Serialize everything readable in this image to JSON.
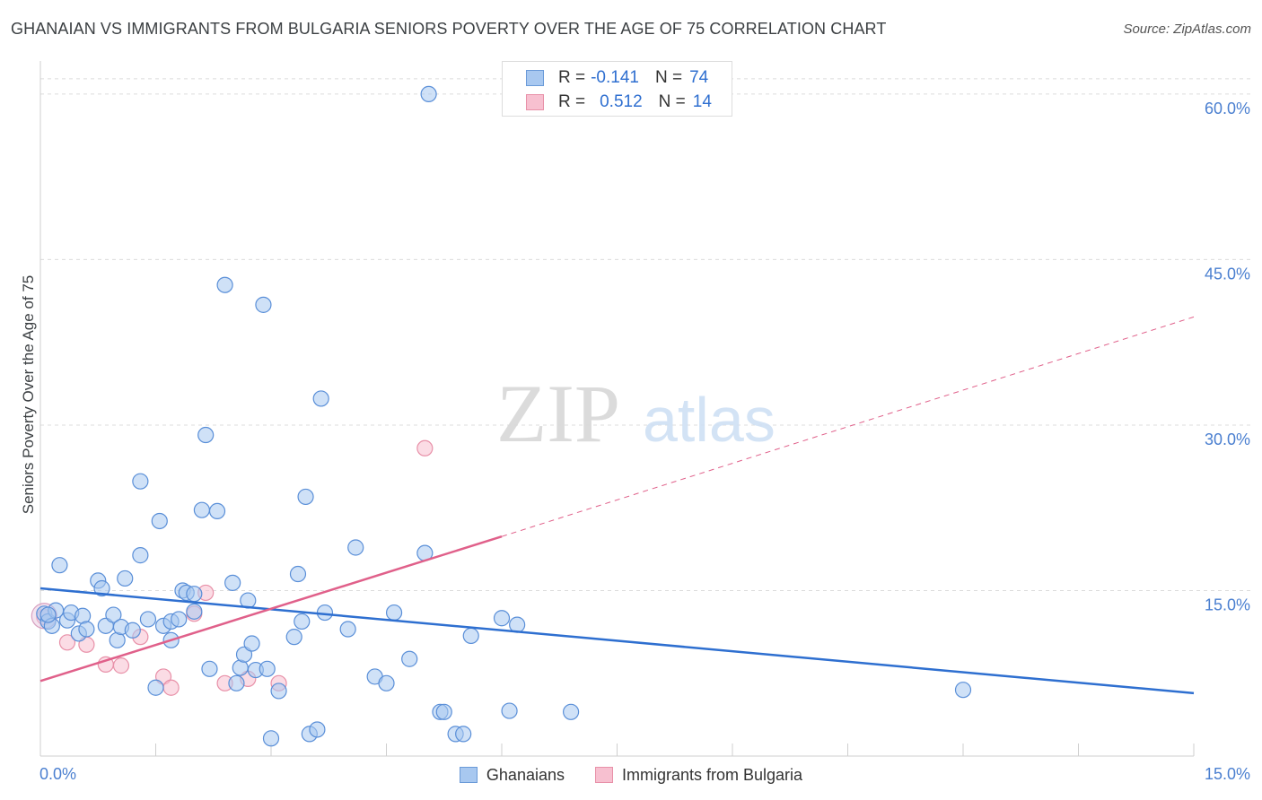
{
  "header": {
    "title": "GHANAIAN VS IMMIGRANTS FROM BULGARIA SENIORS POVERTY OVER THE AGE OF 75 CORRELATION CHART",
    "source": "Source: ZipAtlas.com"
  },
  "watermark": {
    "zip": "ZIP",
    "atlas": "atlas"
  },
  "legend": {
    "rows": [
      {
        "r_label": "R =",
        "r_value": "-0.141",
        "n_label": "N =",
        "n_value": "74",
        "color": "#a8c8f0",
        "border": "#6a9ad8"
      },
      {
        "r_label": "R =",
        "r_value": "0.512",
        "n_label": "N =",
        "n_value": "14",
        "color": "#f7c0d0",
        "border": "#e890a8"
      }
    ]
  },
  "chart_data": {
    "type": "scatter",
    "ylabel": "Seniors Poverty Over the Age of 75",
    "xlim": [
      0,
      15
    ],
    "ylim": [
      0,
      63
    ],
    "x_tick_labels": [
      "0.0%",
      "15.0%"
    ],
    "y_ticks": [
      15,
      30,
      45,
      60
    ],
    "y_tick_labels": [
      "15.0%",
      "30.0%",
      "45.0%",
      "60.0%"
    ],
    "grid": "horizontal-dashed",
    "legend_position": "top-center",
    "series": [
      {
        "name": "Ghanaians",
        "color": "#a8c8f0",
        "stroke": "#5a8fd8",
        "trend": {
          "x": [
            0,
            15
          ],
          "y": [
            15.2,
            5.7
          ],
          "color": "#2e6fd0"
        },
        "points": [
          [
            0.05,
            12.9
          ],
          [
            0.1,
            12.2
          ],
          [
            0.15,
            11.8
          ],
          [
            0.2,
            13.2
          ],
          [
            0.25,
            17.3
          ],
          [
            0.35,
            12.3
          ],
          [
            0.4,
            13.0
          ],
          [
            0.5,
            11.1
          ],
          [
            0.55,
            12.7
          ],
          [
            0.6,
            11.5
          ],
          [
            0.75,
            15.9
          ],
          [
            0.8,
            15.2
          ],
          [
            0.85,
            11.8
          ],
          [
            0.95,
            12.8
          ],
          [
            1.0,
            10.5
          ],
          [
            1.05,
            11.7
          ],
          [
            1.1,
            16.1
          ],
          [
            1.2,
            11.4
          ],
          [
            1.3,
            18.2
          ],
          [
            1.3,
            24.9
          ],
          [
            1.4,
            12.4
          ],
          [
            1.5,
            6.2
          ],
          [
            1.55,
            21.3
          ],
          [
            1.6,
            11.8
          ],
          [
            1.7,
            12.2
          ],
          [
            1.7,
            10.5
          ],
          [
            1.8,
            12.4
          ],
          [
            1.85,
            15.0
          ],
          [
            1.9,
            14.8
          ],
          [
            2.0,
            13.1
          ],
          [
            2.0,
            14.7
          ],
          [
            2.1,
            22.3
          ],
          [
            2.15,
            29.1
          ],
          [
            2.2,
            7.9
          ],
          [
            2.3,
            22.2
          ],
          [
            2.4,
            42.7
          ],
          [
            2.5,
            15.7
          ],
          [
            2.55,
            6.6
          ],
          [
            2.6,
            8.0
          ],
          [
            2.65,
            9.2
          ],
          [
            2.7,
            14.1
          ],
          [
            2.75,
            10.2
          ],
          [
            2.8,
            7.8
          ],
          [
            2.9,
            40.9
          ],
          [
            2.95,
            7.9
          ],
          [
            3.0,
            1.6
          ],
          [
            3.1,
            5.9
          ],
          [
            3.3,
            10.8
          ],
          [
            3.35,
            16.5
          ],
          [
            3.4,
            12.2
          ],
          [
            3.45,
            23.5
          ],
          [
            3.5,
            2.0
          ],
          [
            3.6,
            2.4
          ],
          [
            3.65,
            32.4
          ],
          [
            3.7,
            13.0
          ],
          [
            4.0,
            11.5
          ],
          [
            4.1,
            18.9
          ],
          [
            4.35,
            7.2
          ],
          [
            4.5,
            6.6
          ],
          [
            4.6,
            13.0
          ],
          [
            4.8,
            8.8
          ],
          [
            5.0,
            18.4
          ],
          [
            5.05,
            60.0
          ],
          [
            5.2,
            4.0
          ],
          [
            5.25,
            4.0
          ],
          [
            5.4,
            2.0
          ],
          [
            5.5,
            2.0
          ],
          [
            5.6,
            10.9
          ],
          [
            6.0,
            12.5
          ],
          [
            6.1,
            4.1
          ],
          [
            6.2,
            11.9
          ],
          [
            6.9,
            4.0
          ],
          [
            12.0,
            6.0
          ],
          [
            0.1,
            12.8
          ]
        ]
      },
      {
        "name": "Immigrants from Bulgaria",
        "color": "#f7c0d0",
        "stroke": "#e890a8",
        "trend": {
          "x": [
            0,
            6
          ],
          "y": [
            6.8,
            19.9
          ],
          "color": "#e0608a",
          "dash_to": [
            15,
            39.8
          ]
        },
        "points": [
          [
            0.05,
            12.6
          ],
          [
            0.35,
            10.3
          ],
          [
            0.6,
            10.1
          ],
          [
            0.85,
            8.3
          ],
          [
            1.05,
            8.2
          ],
          [
            1.3,
            10.8
          ],
          [
            1.6,
            7.2
          ],
          [
            1.7,
            6.2
          ],
          [
            2.0,
            12.9
          ],
          [
            2.15,
            14.8
          ],
          [
            2.4,
            6.6
          ],
          [
            2.7,
            7.0
          ],
          [
            3.1,
            6.6
          ],
          [
            5.0,
            27.9
          ]
        ]
      }
    ]
  }
}
